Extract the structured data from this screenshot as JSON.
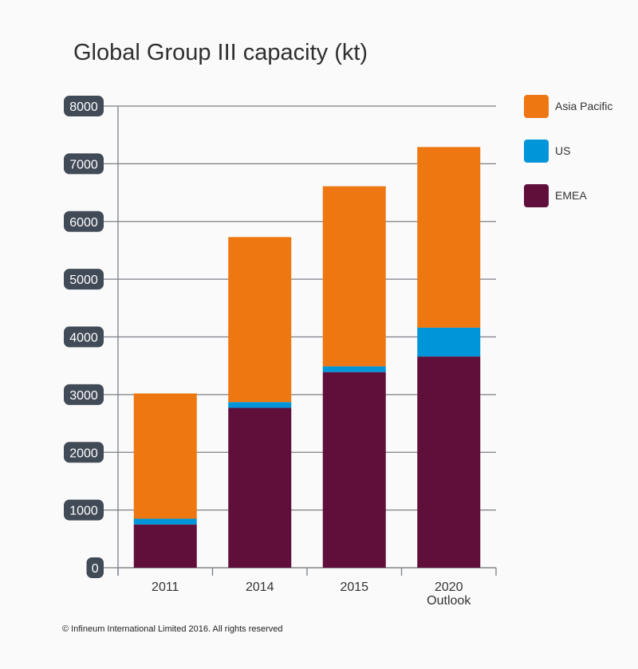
{
  "chart_data": {
    "type": "bar",
    "stacked": true,
    "title": "Global Group III capacity (kt)",
    "categories": [
      "2011",
      "2014",
      "2015",
      "2020\nOutlook"
    ],
    "series": [
      {
        "name": "EMEA",
        "color": "#600f3a",
        "values": [
          750,
          2770,
          3390,
          3660
        ]
      },
      {
        "name": "US",
        "color": "#0095d9",
        "values": [
          100,
          100,
          100,
          500
        ]
      },
      {
        "name": "Asia Pacific",
        "color": "#ee7711",
        "values": [
          2170,
          2860,
          3120,
          3130
        ]
      }
    ],
    "legend_order": [
      "Asia Pacific",
      "US",
      "EMEA"
    ],
    "yticks": [
      0,
      1000,
      2000,
      3000,
      4000,
      5000,
      6000,
      7000,
      8000
    ],
    "ylim": [
      0,
      8000
    ],
    "xlabel": "",
    "ylabel": "",
    "grid": true,
    "legend_placement": "right"
  },
  "footer": "© Infineum International Limited 2016. All rights reserved"
}
